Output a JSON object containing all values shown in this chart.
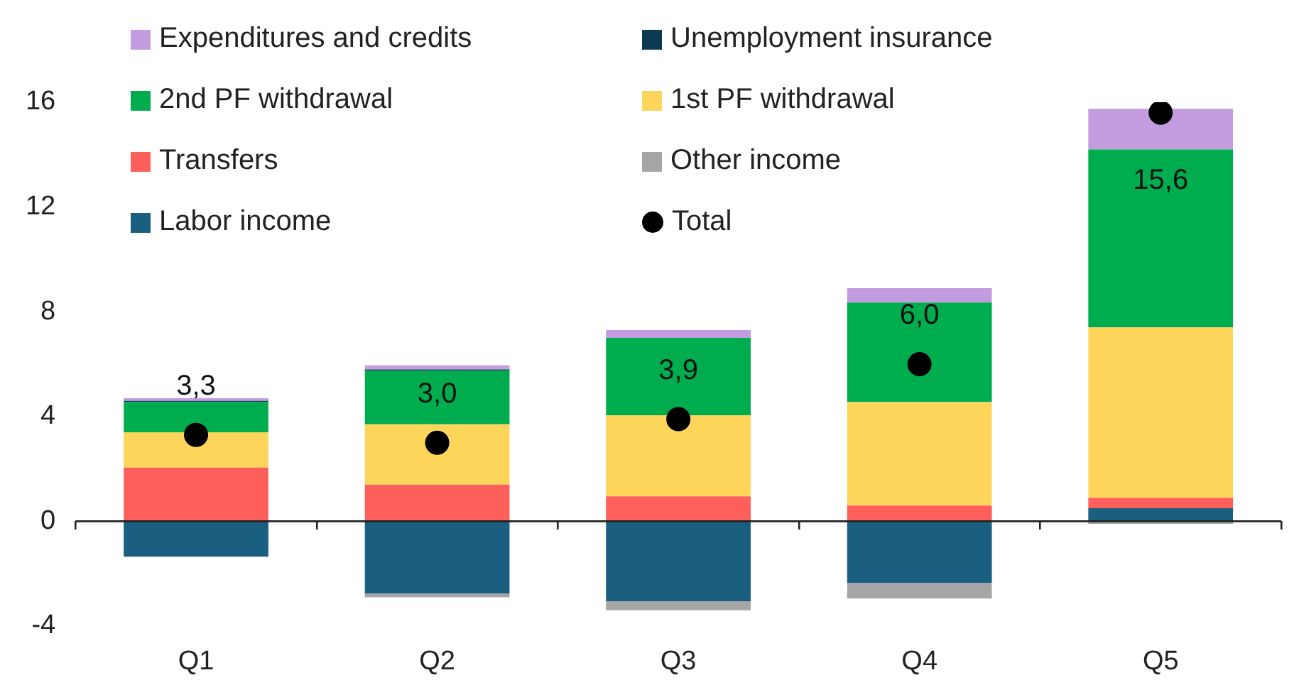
{
  "chart_data": {
    "type": "bar",
    "stacked": true,
    "categories": [
      "Q1",
      "Q2",
      "Q3",
      "Q4",
      "Q5"
    ],
    "ylim": [
      -4,
      16
    ],
    "yticks": [
      -4,
      0,
      4,
      8,
      12,
      16
    ],
    "grid": false,
    "legend": "top",
    "ref_lines": [
      {
        "axis": "y",
        "value": 0,
        "color": "#222222"
      }
    ],
    "series": [
      {
        "name": "Labor income",
        "color": "#1a5e80",
        "values": [
          -1.35,
          -2.75,
          -3.05,
          -2.35,
          0.5
        ]
      },
      {
        "name": "Other income",
        "color": "#a6a6a6",
        "values": [
          0,
          -0.15,
          -0.35,
          -0.6,
          -0.1
        ]
      },
      {
        "name": "Transfers",
        "color": "#ff5f5a",
        "values": [
          2.05,
          1.4,
          0.95,
          0.6,
          0.4
        ]
      },
      {
        "name": "1st PF withdrawal",
        "color": "#fdd55b",
        "values": [
          1.35,
          2.3,
          3.1,
          3.95,
          6.5
        ]
      },
      {
        "name": "2nd PF withdrawal",
        "color": "#00ad4e",
        "values": [
          1.15,
          2.05,
          2.95,
          3.8,
          6.8
        ]
      },
      {
        "name": "Unemployment insurance",
        "color": "#0e3a52",
        "values": [
          0.05,
          0.05,
          0,
          0,
          0
        ]
      },
      {
        "name": "Expenditures and credits",
        "color": "#c39bdf",
        "values": [
          0.1,
          0.15,
          0.3,
          0.55,
          1.55
        ]
      },
      {
        "name": "Total",
        "type": "scatter",
        "marker": "circle",
        "color": "#000000",
        "x": [
          "Q1",
          "Q2",
          "Q3",
          "Q4",
          "Q5"
        ],
        "values": [
          3.3,
          3.0,
          3.9,
          6.0,
          15.6
        ],
        "value_labels": [
          "3,3",
          "3,0",
          "3,9",
          "6,0",
          "15,6"
        ]
      }
    ]
  }
}
